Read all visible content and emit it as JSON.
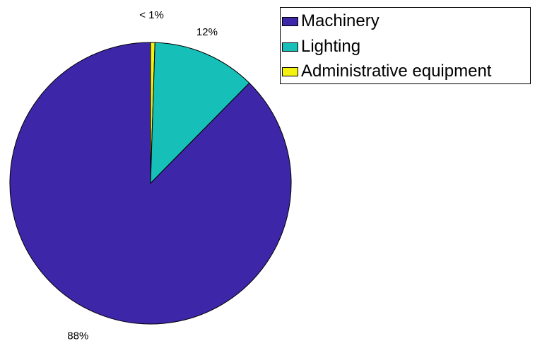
{
  "chart_data": {
    "type": "pie",
    "labels": [
      "Machinery",
      "Lighting",
      "Administrative equipment"
    ],
    "values": [
      87.6,
      11.9,
      0.5
    ],
    "value_labels": [
      "88%",
      "12%",
      "< 1%"
    ],
    "colors": [
      "#3e26a8",
      "#16bfb7",
      "#f5f20f"
    ],
    "start": "top, clockwise",
    "title": "",
    "legend": {
      "placement": "top-right",
      "entries": [
        "Machinery",
        "Lighting",
        "Administrative equipment"
      ]
    }
  }
}
